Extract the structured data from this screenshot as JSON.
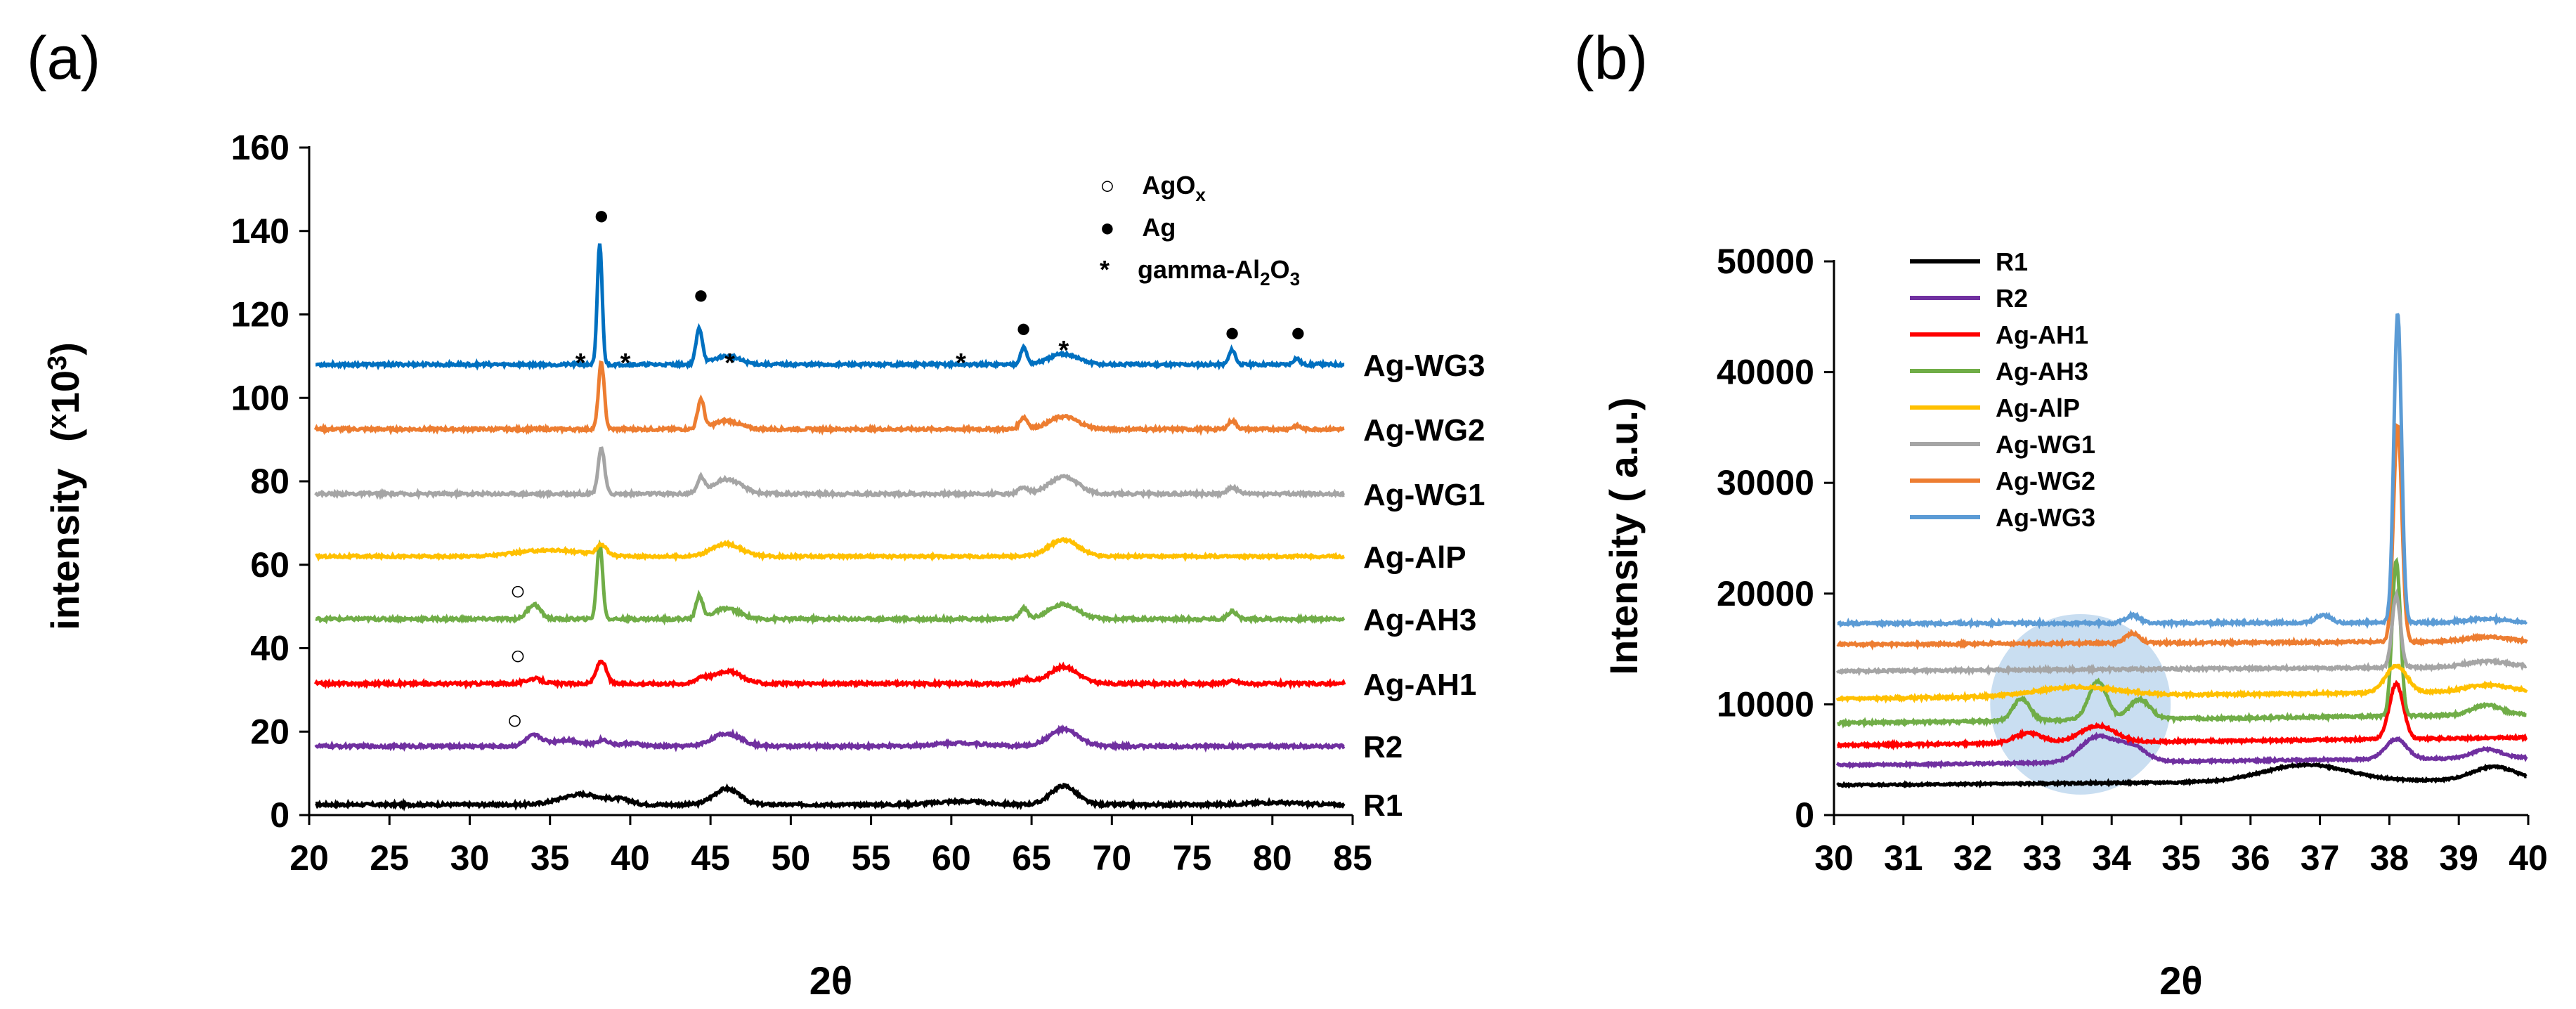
{
  "chart_data": [
    {
      "panel_label": "(a)",
      "type": "line",
      "xlabel": "2θ",
      "ylabel_main": "intensity",
      "ylabel_unit": "(",
      "ylabel_unit_x": "x",
      "ylabel_unit_10": "10",
      "ylabel_unit_exp": "3",
      "ylabel_unit_close": ")",
      "xlim": [
        20,
        85
      ],
      "ylim": [
        0,
        160
      ],
      "xticks": [
        20,
        25,
        30,
        35,
        40,
        45,
        50,
        55,
        60,
        65,
        70,
        75,
        80,
        85
      ],
      "yticks": [
        0,
        20,
        40,
        60,
        80,
        100,
        120,
        140,
        160
      ],
      "series": [
        {
          "name": "R1",
          "color": "#000000",
          "offset": 2.5,
          "noise": 0.35,
          "peaks": [
            [
              37,
              2.5,
              1.3
            ],
            [
              39.5,
              1.0,
              0.6
            ],
            [
              46,
              3.8,
              0.8
            ],
            [
              60.5,
              0.8,
              1.5
            ],
            [
              67,
              4.5,
              0.8
            ],
            [
              80,
              0.5,
              1.5
            ]
          ]
        },
        {
          "name": "R2",
          "color": "#7030A0",
          "offset": 16.5,
          "noise": 0.35,
          "peaks": [
            [
              34,
              2.5,
              0.5
            ],
            [
              36,
              1.5,
              0.9
            ],
            [
              38.3,
              1.5,
              0.4
            ],
            [
              40,
              0.7,
              0.6
            ],
            [
              46,
              3.0,
              0.9
            ],
            [
              60.5,
              0.8,
              1.5
            ],
            [
              67,
              4.0,
              0.9
            ]
          ]
        },
        {
          "name": "Ag-AH1",
          "color": "#FF0000",
          "offset": 31.5,
          "noise": 0.35,
          "peaks": [
            [
              34,
              1.2,
              0.5
            ],
            [
              38.2,
              5.5,
              0.3
            ],
            [
              44.4,
              1.2,
              0.3
            ],
            [
              46,
              3.0,
              0.9
            ],
            [
              64.6,
              1.0,
              0.4
            ],
            [
              67,
              4.0,
              0.9
            ],
            [
              77.5,
              0.6,
              0.4
            ]
          ]
        },
        {
          "name": "Ag-AH3",
          "color": "#70AD47",
          "offset": 47.0,
          "noise": 0.35,
          "peaks": [
            [
              34,
              3.5,
              0.4
            ],
            [
              38.1,
              18,
              0.18
            ],
            [
              44.3,
              5.5,
              0.2
            ],
            [
              46,
              2.5,
              0.8
            ],
            [
              64.5,
              2.5,
              0.25
            ],
            [
              67,
              3.5,
              0.9
            ],
            [
              77.5,
              2.0,
              0.25
            ]
          ]
        },
        {
          "name": "Ag-AlP",
          "color": "#FFC000",
          "offset": 62.0,
          "noise": 0.3,
          "peaks": [
            [
              35,
              1.5,
              2.0
            ],
            [
              38.2,
              2.5,
              0.3
            ],
            [
              46,
              3.0,
              0.9
            ],
            [
              67,
              4.0,
              0.9
            ]
          ]
        },
        {
          "name": "Ag-WG1",
          "color": "#A5A5A5",
          "offset": 77.0,
          "noise": 0.35,
          "peaks": [
            [
              38.2,
              11,
              0.2
            ],
            [
              44.4,
              3.5,
              0.2
            ],
            [
              46,
              3.5,
              0.9
            ],
            [
              64.5,
              1.5,
              0.3
            ],
            [
              67,
              4.0,
              0.9
            ],
            [
              77.5,
              1.5,
              0.3
            ]
          ]
        },
        {
          "name": "Ag-WG2",
          "color": "#ED7D31",
          "offset": 92.5,
          "noise": 0.35,
          "peaks": [
            [
              38.2,
              16,
              0.18
            ],
            [
              44.4,
              7.0,
              0.2
            ],
            [
              46,
              2.0,
              0.8
            ],
            [
              64.5,
              2.8,
              0.25
            ],
            [
              67,
              3.0,
              0.9
            ],
            [
              77.5,
              2.0,
              0.25
            ],
            [
              81.5,
              0.8,
              0.25
            ]
          ]
        },
        {
          "name": "Ag-WG3",
          "color": "#0070C0",
          "offset": 108.0,
          "noise": 0.35,
          "peaks": [
            [
              38.1,
              29,
              0.15
            ],
            [
              44.3,
              8.5,
              0.2
            ],
            [
              46,
              2.0,
              0.8
            ],
            [
              64.5,
              4.0,
              0.2
            ],
            [
              67,
              2.5,
              0.9
            ],
            [
              77.5,
              3.5,
              0.2
            ],
            [
              81.5,
              1.5,
              0.2
            ]
          ]
        }
      ],
      "annotations": [
        {
          "symbol": "●",
          "x": 38.2,
          "y": 144
        },
        {
          "symbol": "●",
          "x": 44.4,
          "y": 125
        },
        {
          "symbol": "●",
          "x": 64.5,
          "y": 117
        },
        {
          "symbol": "●",
          "x": 77.5,
          "y": 116
        },
        {
          "symbol": "●",
          "x": 81.6,
          "y": 116
        },
        {
          "symbol": "*",
          "x": 36.9,
          "y": 111
        },
        {
          "symbol": "*",
          "x": 39.7,
          "y": 111
        },
        {
          "symbol": "*",
          "x": 46.2,
          "y": 111
        },
        {
          "symbol": "*",
          "x": 60.6,
          "y": 111
        },
        {
          "symbol": "*",
          "x": 67.0,
          "y": 114
        },
        {
          "symbol": "○",
          "x": 33.0,
          "y": 54
        },
        {
          "symbol": "○",
          "x": 33.0,
          "y": 38.5
        },
        {
          "symbol": "○",
          "x": 32.8,
          "y": 23
        }
      ],
      "legend": {
        "agox_symbol": "○",
        "agox_text": "AgO",
        "agox_sub": "x",
        "ag_symbol": "●",
        "ag_text": "Ag",
        "al_symbol": "*",
        "al_text_a": "gamma-Al",
        "al_sub_a": "2",
        "al_text_b": "O",
        "al_sub_b": "3"
      }
    },
    {
      "panel_label": "(b)",
      "type": "line",
      "xlabel": "2θ",
      "ylabel": "Intensity ( a.u.)",
      "xlim": [
        30,
        40
      ],
      "ylim": [
        0,
        50000
      ],
      "xticks": [
        30,
        31,
        32,
        33,
        34,
        35,
        36,
        37,
        38,
        39,
        40
      ],
      "yticks": [
        0,
        10000,
        20000,
        30000,
        40000,
        50000
      ],
      "highlight": {
        "cx": 33.55,
        "cy": 10000,
        "r_x": 1.3
      },
      "series": [
        {
          "name": "R1",
          "color": "#000000",
          "offset": 2700,
          "slope": 50,
          "noise": 80,
          "peaks": [
            [
              36.8,
              1500,
              0.6
            ],
            [
              39.5,
              1200,
              0.3
            ]
          ]
        },
        {
          "name": "R2",
          "color": "#7030A0",
          "offset": 4500,
          "slope": 70,
          "noise": 90,
          "peaks": [
            [
              33.8,
              2300,
              0.25
            ],
            [
              34.3,
              1300,
              0.2
            ],
            [
              38.1,
              1800,
              0.15
            ],
            [
              39.4,
              800,
              0.2
            ]
          ]
        },
        {
          "name": "Ag-AH1",
          "color": "#FF0000",
          "offset": 6300,
          "slope": 70,
          "noise": 100,
          "peaks": [
            [
              32.8,
              900,
              0.2
            ],
            [
              33.8,
              1500,
              0.25
            ],
            [
              38.1,
              5000,
              0.1
            ]
          ]
        },
        {
          "name": "Ag-AH3",
          "color": "#70AD47",
          "offset": 8300,
          "slope": 80,
          "noise": 110,
          "peaks": [
            [
              32.7,
              2000,
              0.12
            ],
            [
              33.8,
              3500,
              0.13
            ],
            [
              34.4,
              1800,
              0.15
            ],
            [
              38.1,
              14000,
              0.06
            ],
            [
              39.4,
              900,
              0.2
            ]
          ]
        },
        {
          "name": "Ag-AlP",
          "color": "#FFC000",
          "offset": 10500,
          "slope": 70,
          "noise": 110,
          "peaks": [
            [
              33.5,
              800,
              0.6
            ],
            [
              38.1,
              2400,
              0.15
            ],
            [
              39.4,
              600,
              0.3
            ]
          ]
        },
        {
          "name": "Ag-WG1",
          "color": "#A5A5A5",
          "offset": 13000,
          "slope": 40,
          "noise": 110,
          "peaks": [
            [
              38.1,
              6500,
              0.06
            ],
            [
              39.4,
              500,
              0.3
            ]
          ]
        },
        {
          "name": "Ag-WG2",
          "color": "#ED7D31",
          "offset": 15400,
          "slope": 30,
          "noise": 110,
          "peaks": [
            [
              34.3,
              900,
              0.1
            ],
            [
              38.12,
              19500,
              0.06
            ],
            [
              39.4,
              400,
              0.3
            ]
          ]
        },
        {
          "name": "Ag-WG3",
          "color": "#5B9BD5",
          "offset": 17300,
          "slope": 10,
          "noise": 120,
          "peaks": [
            [
              34.3,
              700,
              0.1
            ],
            [
              37.05,
              700,
              0.1
            ],
            [
              38.12,
              28000,
              0.055
            ],
            [
              39.4,
              300,
              0.3
            ]
          ]
        }
      ]
    }
  ]
}
